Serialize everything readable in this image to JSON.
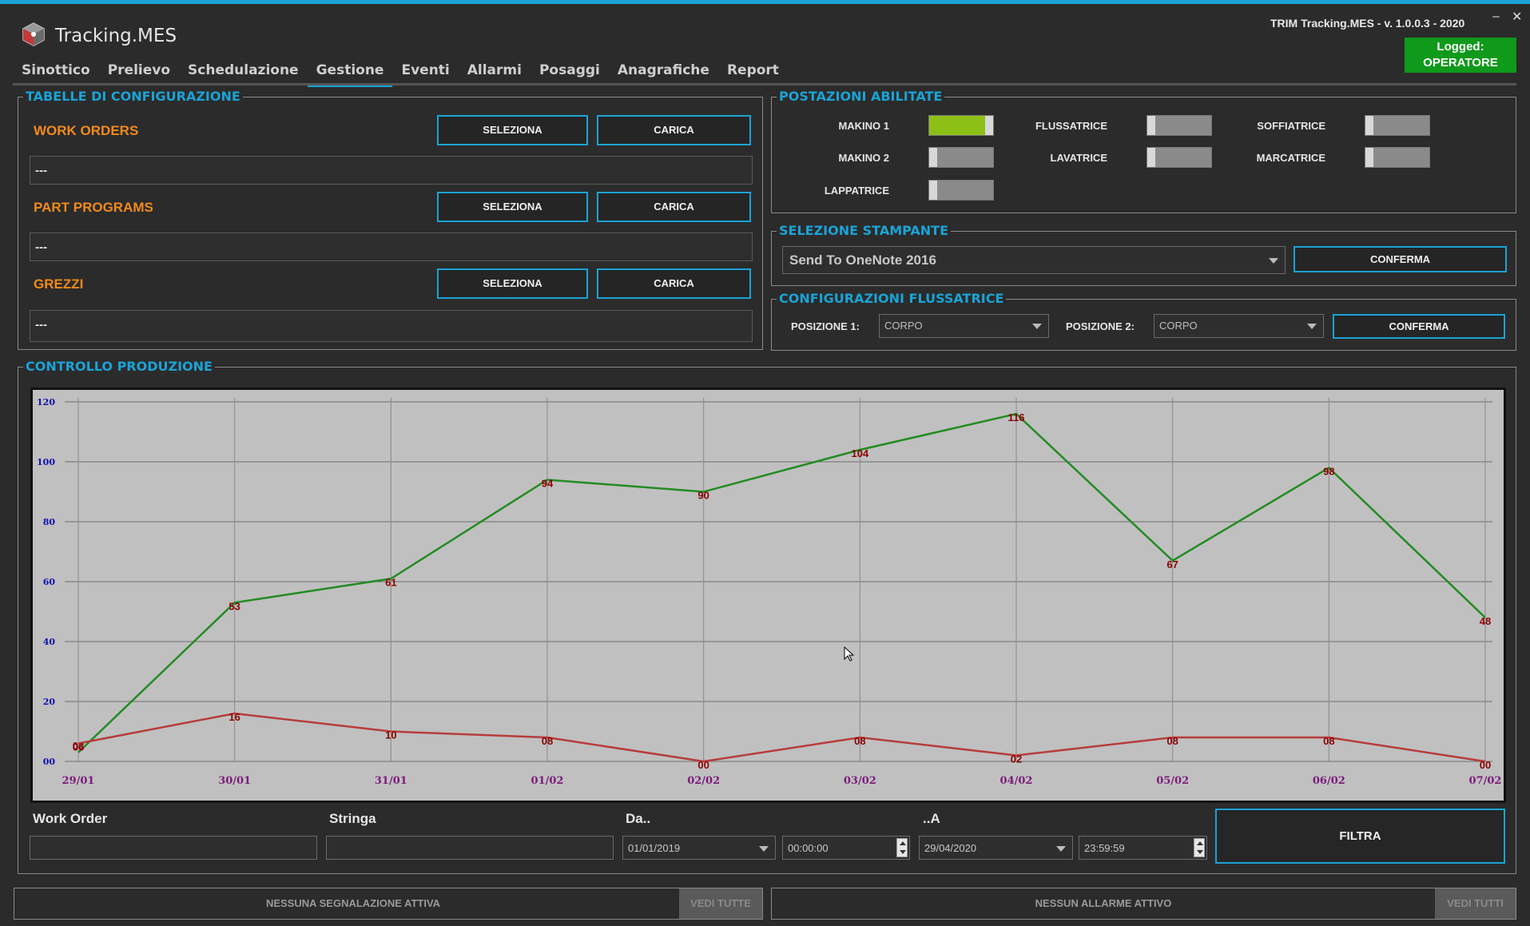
{
  "header": {
    "app_title": "Tracking.MES",
    "version": "TRIM Tracking.MES  -  v. 1.0.0.3  -  2020",
    "minimize": "–",
    "close": "✕",
    "logged_line1": "Logged:",
    "logged_line2": "OPERATORE",
    "logged_color": "#0f9a1b",
    "accent_color": "#1aa3d6"
  },
  "nav": {
    "items": [
      "Sinottico",
      "Prelievo",
      "Schedulazione",
      "Gestione",
      "Eventi",
      "Allarmi",
      "Posaggi",
      "Anagrafiche",
      "Report"
    ],
    "active": "Gestione"
  },
  "config_tables": {
    "title": "TABELLE DI CONFIGURAZIONE",
    "rows": [
      {
        "label": "WORK ORDERS",
        "select": "SELEZIONA",
        "load": "CARICA",
        "path": "---"
      },
      {
        "label": "PART PROGRAMS",
        "select": "SELEZIONA",
        "load": "CARICA",
        "path": "---"
      },
      {
        "label": "GREZZI",
        "select": "SELEZIONA",
        "load": "CARICA",
        "path": "---"
      }
    ]
  },
  "stations": {
    "title": "POSTAZIONI ABILITATE",
    "items": [
      {
        "label": "MAKINO 1",
        "enabled": true
      },
      {
        "label": "MAKINO 2",
        "enabled": false
      },
      {
        "label": "LAPPATRICE",
        "enabled": false
      },
      {
        "label": "FLUSSATRICE",
        "enabled": false
      },
      {
        "label": "LAVATRICE",
        "enabled": false
      },
      {
        "label": "SOFFIATRICE",
        "enabled": false
      },
      {
        "label": "MARCATRICE",
        "enabled": false
      }
    ]
  },
  "printer": {
    "title": "SELEZIONE STAMPANTE",
    "selected": "Send To OneNote 2016",
    "confirm": "CONFERMA"
  },
  "flux_config": {
    "title": "CONFIGURAZIONI FLUSSATRICE",
    "pos1_label": "POSIZIONE 1:",
    "pos1_value": "CORPO",
    "pos2_label": "POSIZIONE 2:",
    "pos2_value": "CORPO",
    "confirm": "CONFERMA"
  },
  "production": {
    "title": "CONTROLLO PRODUZIONE"
  },
  "chart_data": {
    "type": "line",
    "categories": [
      "29/01",
      "30/01",
      "31/01",
      "01/02",
      "02/02",
      "03/02",
      "04/02",
      "05/02",
      "06/02",
      "07/02"
    ],
    "series": [
      {
        "color": "#228b22",
        "values": [
          3,
          53,
          61,
          94,
          90,
          104,
          116,
          67,
          98,
          48
        ],
        "labels": [
          "03",
          "53",
          "61",
          "94",
          "90",
          "104",
          "116",
          "67",
          "98",
          "48"
        ]
      },
      {
        "color": "#b83c3c",
        "values": [
          6,
          16,
          10,
          8,
          0,
          8,
          2,
          8,
          8,
          0
        ],
        "labels": [
          "06",
          "16",
          "10",
          "08",
          "00",
          "08",
          "02",
          "08",
          "08",
          "00"
        ]
      }
    ],
    "y_ticks": [
      "00",
      "20",
      "40",
      "60",
      "80",
      "100",
      "120"
    ],
    "ylim": [
      0,
      120
    ],
    "grid": true,
    "label_color": "#8b0000",
    "tick_color_y": "#1010b0",
    "tick_color_x": "#7b1a7b"
  },
  "filters": {
    "work_order_label": "Work Order",
    "work_order_value": "",
    "stringa_label": "Stringa",
    "stringa_value": "",
    "from_label": "Da..",
    "from_date": "01/01/2019",
    "from_time": "00:00:00",
    "to_label": "..A",
    "to_date": "29/04/2020",
    "to_time": "23:59:59",
    "filter_button": "FILTRA"
  },
  "status": {
    "signals_text": "NESSUNA SEGNALAZIONE ATTIVA",
    "signals_button": "VEDI TUTTE",
    "alarms_text": "NESSUN ALLARME ATTIVO",
    "alarms_button": "VEDI TUTTI"
  }
}
